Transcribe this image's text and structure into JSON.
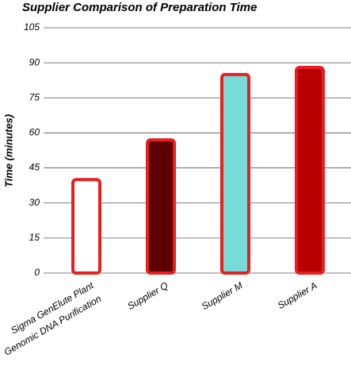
{
  "chart_data": {
    "type": "bar",
    "title": "Supplier Comparison of Preparation Time",
    "ylabel": "Time (minutes)",
    "categories": [
      "Sigma GenElute Plant Genomic DNA Purification",
      "Supplier Q",
      "Supplier M",
      "Supplier A"
    ],
    "values": [
      40,
      57,
      85,
      88
    ],
    "colors": [
      "#ffffff",
      "#5c0000",
      "#76dcd9",
      "#b80000"
    ],
    "edge_color": "#e62020",
    "ylim": [
      0,
      105
    ],
    "yticks": [
      0,
      15,
      30,
      45,
      60,
      75,
      90,
      105
    ],
    "grid": true
  }
}
